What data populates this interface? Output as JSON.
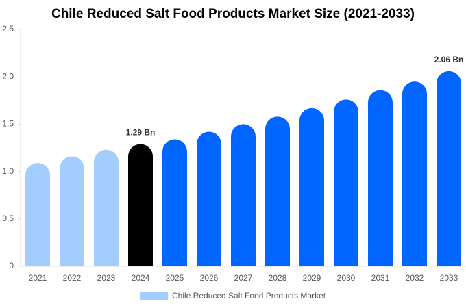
{
  "chart_data": {
    "type": "bar",
    "title": "Chile Reduced Salt Food Products Market Size (2021-2033)",
    "categories": [
      "2021",
      "2022",
      "2023",
      "2024",
      "2025",
      "2026",
      "2027",
      "2028",
      "2029",
      "2030",
      "2031",
      "2032",
      "2033"
    ],
    "series": [
      {
        "name": "Chile Reduced Salt Food Products Market",
        "color": "#a3cdfd",
        "values": [
          1.09,
          1.16,
          1.23,
          1.29,
          1.34,
          1.42,
          1.5,
          1.58,
          1.67,
          1.76,
          1.86,
          1.95,
          2.06
        ],
        "value_labels": [
          null,
          null,
          null,
          "1.29 Bn",
          null,
          null,
          null,
          null,
          null,
          null,
          null,
          null,
          "2.06 Bn"
        ],
        "colors": [
          "#a3cdfd",
          "#a3cdfd",
          "#a3cdfd",
          "#000000",
          "#0066ff",
          "#0066ff",
          "#0066ff",
          "#0066ff",
          "#0066ff",
          "#0066ff",
          "#0066ff",
          "#0066ff",
          "#0066ff"
        ]
      }
    ],
    "ylim": [
      0,
      2.5
    ],
    "yticks": [
      0,
      0.5,
      {
        "value": 1,
        "label": "1.0"
      },
      1.5,
      {
        "value": 2,
        "label": "2.0"
      },
      2.5
    ],
    "grid": false
  }
}
